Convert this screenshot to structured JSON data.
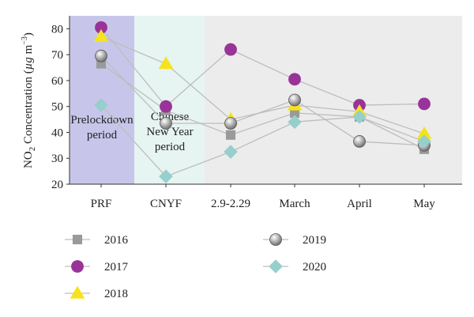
{
  "chart_data": {
    "type": "line",
    "categories": [
      "PRF",
      "CNYF",
      "2.9-2.29",
      "March",
      "April",
      "May"
    ],
    "ylabel": "NO2 Concentration (µg m−3)",
    "ylabel_parts": {
      "main": "NO",
      "sub": "2",
      "rest": " Concentration (",
      "unit": "µg",
      "space": " m",
      "sup": "−3",
      "close": ")"
    },
    "ylim": [
      20,
      85
    ],
    "yticks": [
      20,
      30,
      40,
      50,
      60,
      70,
      80
    ],
    "grid": false,
    "legend_position": "bottom",
    "period_labels": [
      {
        "lines": [
          "Prelockdown",
          "period"
        ],
        "color": "#c7c6ea"
      },
      {
        "lines": [
          "Chinese",
          "New Year",
          "period"
        ],
        "color": "#e6f4f2"
      },
      {
        "lines": [],
        "color": "#ececec"
      }
    ],
    "series": [
      {
        "name": "2016",
        "marker": "square",
        "color": "#9a9a9a",
        "values": [
          66.5,
          48.5,
          39,
          47.5,
          46,
          33.5
        ]
      },
      {
        "name": "2017",
        "marker": "circle",
        "color": "#993399",
        "values": [
          80.5,
          50,
          72,
          60.5,
          50.5,
          51
        ]
      },
      {
        "name": "2018",
        "marker": "triangle",
        "color": "#f5e31c",
        "values": [
          77,
          66.5,
          45,
          50.5,
          48,
          39.5
        ]
      },
      {
        "name": "2019",
        "marker": "sphere",
        "color": "#8f8f8f",
        "values": [
          69.5,
          43.5,
          43.5,
          52.5,
          36.5,
          35
        ]
      },
      {
        "name": "2020",
        "marker": "diamond",
        "color": "#96cfcc",
        "values": [
          50.5,
          23,
          32.5,
          44,
          46,
          36.5
        ]
      }
    ]
  }
}
